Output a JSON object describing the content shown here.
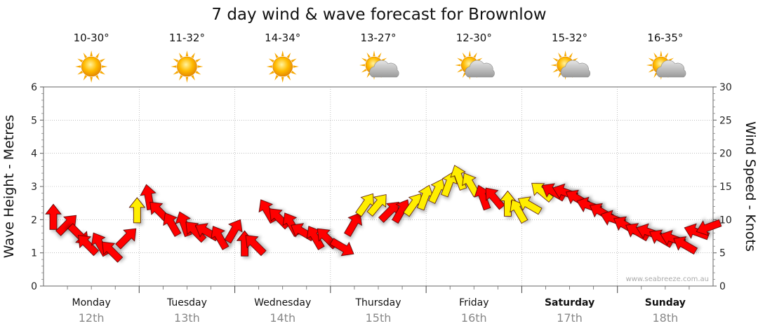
{
  "title": "7 day wind & wave forecast for Brownlow",
  "credit": "www.seabreeze.com.au",
  "colors": {
    "strong": "#ff0000",
    "light": "#ffee00",
    "outline": "#4a0000",
    "grid": "#999999"
  },
  "chart_data": {
    "type": "scatter",
    "left_axis": {
      "label": "Wave Height - Metres",
      "min": 0,
      "max": 6,
      "ticks": [
        "0",
        "1",
        "2",
        "3",
        "4",
        "5",
        "6"
      ]
    },
    "right_axis": {
      "label": "Wind Speed - Knots",
      "min": 0,
      "max": 30,
      "ticks": [
        "0",
        "5",
        "10",
        "15",
        "20",
        "25",
        "30"
      ]
    },
    "grid": true,
    "days": [
      {
        "name": "Monday",
        "date": "12th",
        "temp": "10-30°",
        "icon": "sun-icon",
        "bold": false
      },
      {
        "name": "Tuesday",
        "date": "13th",
        "temp": "11-32°",
        "icon": "sun-icon",
        "bold": false
      },
      {
        "name": "Wednesday",
        "date": "14th",
        "temp": "14-34°",
        "icon": "sun-icon",
        "bold": false
      },
      {
        "name": "Thursday",
        "date": "15th",
        "temp": "13-27°",
        "icon": "sun-cloud-icon",
        "bold": false
      },
      {
        "name": "Friday",
        "date": "16th",
        "temp": "12-30°",
        "icon": "sun-cloud-icon",
        "bold": false
      },
      {
        "name": "Saturday",
        "date": "17th",
        "temp": "15-32°",
        "icon": "sun-cloud-icon",
        "bold": true
      },
      {
        "name": "Sunday",
        "date": "18th",
        "temp": "16-35°",
        "icon": "sun-cloud-icon",
        "bold": true
      }
    ],
    "wind_series": {
      "name": "Wind",
      "x_unit": "hours",
      "x": [
        0,
        3,
        6,
        9,
        12,
        15,
        18,
        21,
        24,
        27,
        30,
        33,
        36,
        39,
        42,
        45,
        48,
        51,
        54,
        57,
        60,
        63,
        66,
        69,
        72,
        75,
        78,
        81,
        84,
        87,
        90,
        93,
        96,
        99,
        102,
        105,
        108,
        111,
        114,
        117,
        120,
        123,
        126,
        129,
        132,
        135,
        138,
        141,
        144,
        147,
        150,
        153,
        156,
        159,
        162,
        165
      ],
      "speed_knots": [
        10,
        9,
        8,
        6,
        6,
        5,
        7,
        11,
        13,
        11,
        9,
        9,
        8,
        8,
        7,
        8,
        6,
        6,
        11,
        10,
        9,
        8,
        7,
        7,
        6,
        9,
        12,
        12,
        11,
        11,
        12,
        13,
        14,
        15,
        16,
        15,
        13,
        13,
        12,
        11,
        12,
        14,
        14,
        14,
        13,
        12,
        11,
        10,
        9,
        8,
        8,
        7,
        7,
        6,
        8,
        9
      ],
      "direction_deg": [
        0,
        45,
        135,
        315,
        330,
        315,
        45,
        0,
        350,
        315,
        330,
        340,
        315,
        300,
        330,
        30,
        0,
        315,
        330,
        315,
        330,
        300,
        330,
        315,
        120,
        30,
        35,
        40,
        45,
        30,
        35,
        20,
        25,
        20,
        340,
        330,
        340,
        320,
        0,
        330,
        300,
        310,
        300,
        290,
        300,
        290,
        300,
        290,
        300,
        300,
        290,
        300,
        290,
        300,
        290,
        250
      ],
      "category": [
        "strong",
        "strong",
        "strong",
        "strong",
        "strong",
        "strong",
        "strong",
        "light",
        "strong",
        "strong",
        "strong",
        "strong",
        "strong",
        "strong",
        "strong",
        "strong",
        "strong",
        "strong",
        "strong",
        "strong",
        "strong",
        "strong",
        "strong",
        "strong",
        "strong",
        "strong",
        "light",
        "light",
        "strong",
        "strong",
        "light",
        "light",
        "light",
        "light",
        "light",
        "light",
        "strong",
        "strong",
        "light",
        "light",
        "light",
        "light",
        "strong",
        "strong",
        "strong",
        "strong",
        "strong",
        "strong",
        "strong",
        "strong",
        "strong",
        "strong",
        "strong",
        "strong",
        "strong",
        "strong"
      ]
    }
  }
}
